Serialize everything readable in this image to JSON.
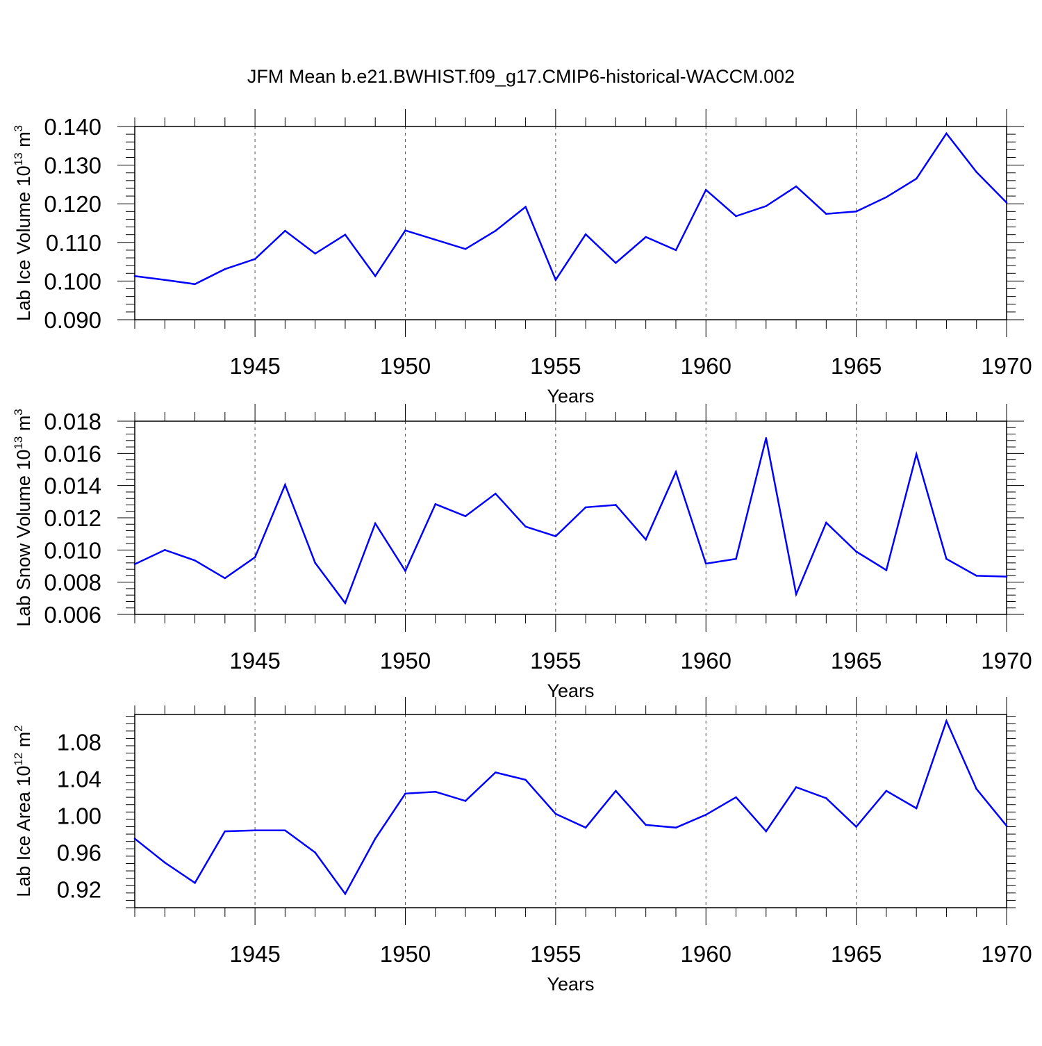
{
  "title": "JFM Mean b.e21.BWHIST.f09_g17.CMIP6-historical-WACCM.002",
  "colors": {
    "line": "#0000ff",
    "axis": "#000000",
    "grid": "#555555"
  },
  "chart_data": [
    {
      "type": "line",
      "xlabel": "Years",
      "ylabel": {
        "text": "Lab Ice Volume 10",
        "exp": "13",
        "unit": " m",
        "unit_exp": "3"
      },
      "xlim": [
        1941,
        1970
      ],
      "ylim": [
        0.09,
        0.14
      ],
      "xticks": [
        1945,
        1950,
        1955,
        1960,
        1965,
        1970
      ],
      "yticks": [
        "0.090",
        "0.100",
        "0.110",
        "0.120",
        "0.130",
        "0.140"
      ],
      "grid": "dashed vertical at major x ticks",
      "x": [
        1941,
        1942,
        1943,
        1944,
        1945,
        1946,
        1947,
        1948,
        1949,
        1950,
        1951,
        1952,
        1953,
        1954,
        1955,
        1956,
        1957,
        1958,
        1959,
        1960,
        1961,
        1962,
        1963,
        1964,
        1965,
        1966,
        1967,
        1968,
        1969,
        1970
      ],
      "values": [
        0.1013,
        0.1003,
        0.0992,
        0.1031,
        0.1057,
        0.113,
        0.1071,
        0.112,
        0.1013,
        0.1131,
        0.1107,
        0.1083,
        0.113,
        0.1192,
        0.1003,
        0.1121,
        0.1047,
        0.1114,
        0.108,
        0.1236,
        0.1168,
        0.1194,
        0.1245,
        0.1174,
        0.118,
        0.1217,
        0.1265,
        0.1382,
        0.1282,
        0.1203
      ]
    },
    {
      "type": "line",
      "xlabel": "Years",
      "ylabel": {
        "text": "Lab Snow Volume 10",
        "exp": "13",
        "unit": " m",
        "unit_exp": "3"
      },
      "xlim": [
        1941,
        1970
      ],
      "ylim": [
        0.006,
        0.018
      ],
      "xticks": [
        1945,
        1950,
        1955,
        1960,
        1965,
        1970
      ],
      "yticks": [
        "0.006",
        "0.008",
        "0.010",
        "0.012",
        "0.014",
        "0.016",
        "0.018"
      ],
      "grid": "dashed vertical at major x ticks",
      "x": [
        1941,
        1942,
        1943,
        1944,
        1945,
        1946,
        1947,
        1948,
        1949,
        1950,
        1951,
        1952,
        1953,
        1954,
        1955,
        1956,
        1957,
        1958,
        1959,
        1960,
        1961,
        1962,
        1963,
        1964,
        1965,
        1966,
        1967,
        1968,
        1969,
        1970
      ],
      "values": [
        0.00912,
        0.01,
        0.00935,
        0.00825,
        0.00955,
        0.01405,
        0.0092,
        0.0067,
        0.01165,
        0.0087,
        0.01285,
        0.0121,
        0.0135,
        0.01145,
        0.01085,
        0.01265,
        0.0128,
        0.01065,
        0.01485,
        0.00915,
        0.00945,
        0.01695,
        0.00725,
        0.0117,
        0.0099,
        0.00875,
        0.01595,
        0.00945,
        0.0084,
        0.00835
      ]
    },
    {
      "type": "line",
      "xlabel": "Years",
      "ylabel": {
        "text": "Lab Ice Area 10",
        "exp": "12",
        "unit": " m",
        "unit_exp": "2"
      },
      "xlim": [
        1941,
        1970
      ],
      "ylim": [
        0.9,
        1.11
      ],
      "xticks": [
        1945,
        1950,
        1955,
        1960,
        1965,
        1970
      ],
      "yticks": [
        "0.92",
        "0.96",
        "1.00",
        "1.04",
        "1.08"
      ],
      "grid": "dashed vertical at major x ticks",
      "x": [
        1941,
        1942,
        1943,
        1944,
        1945,
        1946,
        1947,
        1948,
        1949,
        1950,
        1951,
        1952,
        1953,
        1954,
        1955,
        1956,
        1957,
        1958,
        1959,
        1960,
        1961,
        1962,
        1963,
        1964,
        1965,
        1966,
        1967,
        1968,
        1969,
        1970
      ],
      "values": [
        0.975,
        0.949,
        0.927,
        0.983,
        0.984,
        0.984,
        0.96,
        0.915,
        0.975,
        1.024,
        1.026,
        1.016,
        1.047,
        1.039,
        1.002,
        0.987,
        1.027,
        0.99,
        0.987,
        1.001,
        1.02,
        0.983,
        1.031,
        1.019,
        0.988,
        1.027,
        1.008,
        1.103,
        1.029,
        0.989
      ]
    }
  ]
}
